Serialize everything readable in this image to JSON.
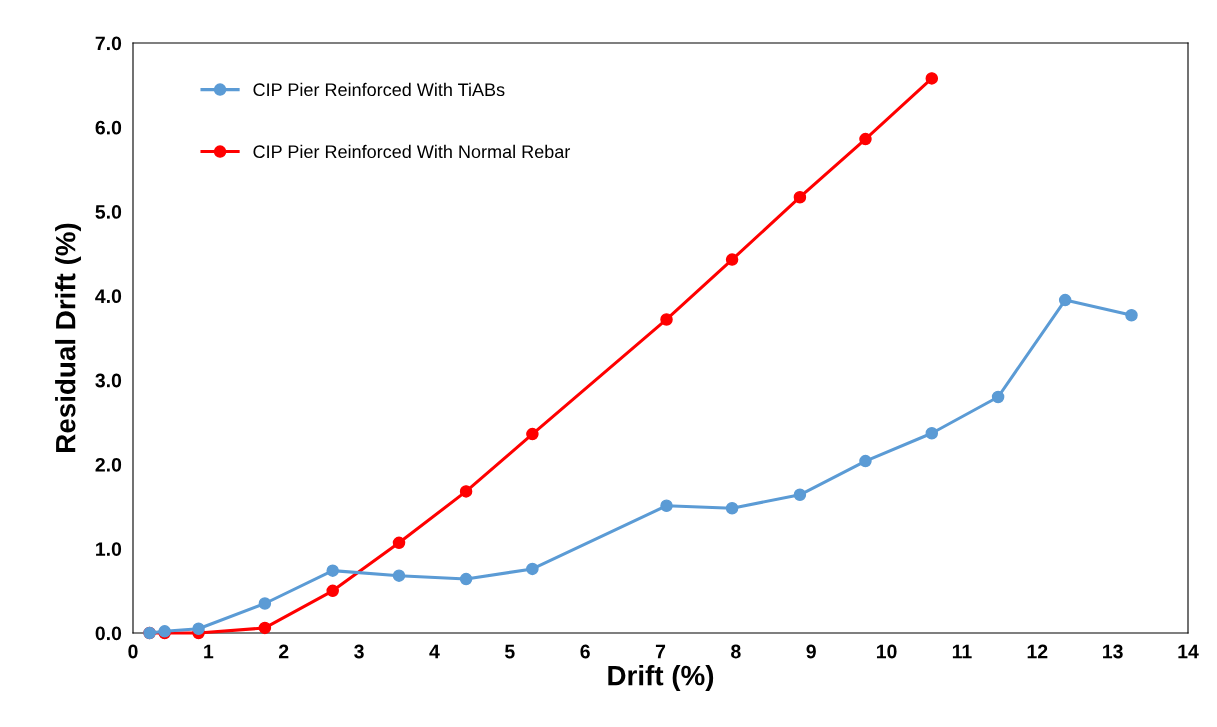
{
  "chart_data": {
    "type": "line",
    "xlabel": "Drift (%)",
    "ylabel": "Residual Drift (%)",
    "series": [
      {
        "name": "CIP Pier Reinforced With TiABs",
        "color": "#5b9bd5",
        "x": [
          0.22,
          0.42,
          0.87,
          1.75,
          2.65,
          3.53,
          4.42,
          5.3,
          7.08,
          7.95,
          8.85,
          9.72,
          10.6,
          11.48,
          12.37,
          13.25
        ],
        "values": [
          0.0,
          0.02,
          0.05,
          0.35,
          0.74,
          0.68,
          0.64,
          0.76,
          1.51,
          1.48,
          1.64,
          2.04,
          2.37,
          2.8,
          3.95,
          3.77
        ]
      },
      {
        "name": "CIP Pier Reinforced With Normal Rebar",
        "color": "#ff0000",
        "x": [
          0.22,
          0.42,
          0.87,
          1.75,
          2.65,
          3.53,
          4.42,
          5.3,
          7.08,
          7.95,
          8.85,
          9.72,
          10.6
        ],
        "values": [
          0.0,
          0.0,
          0.0,
          0.06,
          0.5,
          1.07,
          1.68,
          2.36,
          3.72,
          4.43,
          5.17,
          5.86,
          6.58
        ]
      }
    ],
    "xlim": [
      0,
      14
    ],
    "xticks": [
      0,
      1,
      2,
      3,
      4,
      5,
      6,
      7,
      8,
      9,
      10,
      11,
      12,
      13,
      14
    ],
    "ylim": [
      0,
      7
    ],
    "yticks": [
      {
        "value": 0,
        "label": "0.0"
      },
      {
        "value": 1,
        "label": "1.0"
      },
      {
        "value": 2,
        "label": "2.0"
      },
      {
        "value": 3,
        "label": "3.0"
      },
      {
        "value": 4,
        "label": "4.0"
      },
      {
        "value": 5,
        "label": "5.0"
      },
      {
        "value": 6,
        "label": "6.0"
      },
      {
        "value": 7,
        "label": "7.0"
      }
    ],
    "marker": "circle",
    "line_style": "solid",
    "grid": false,
    "legend": "top left"
  }
}
